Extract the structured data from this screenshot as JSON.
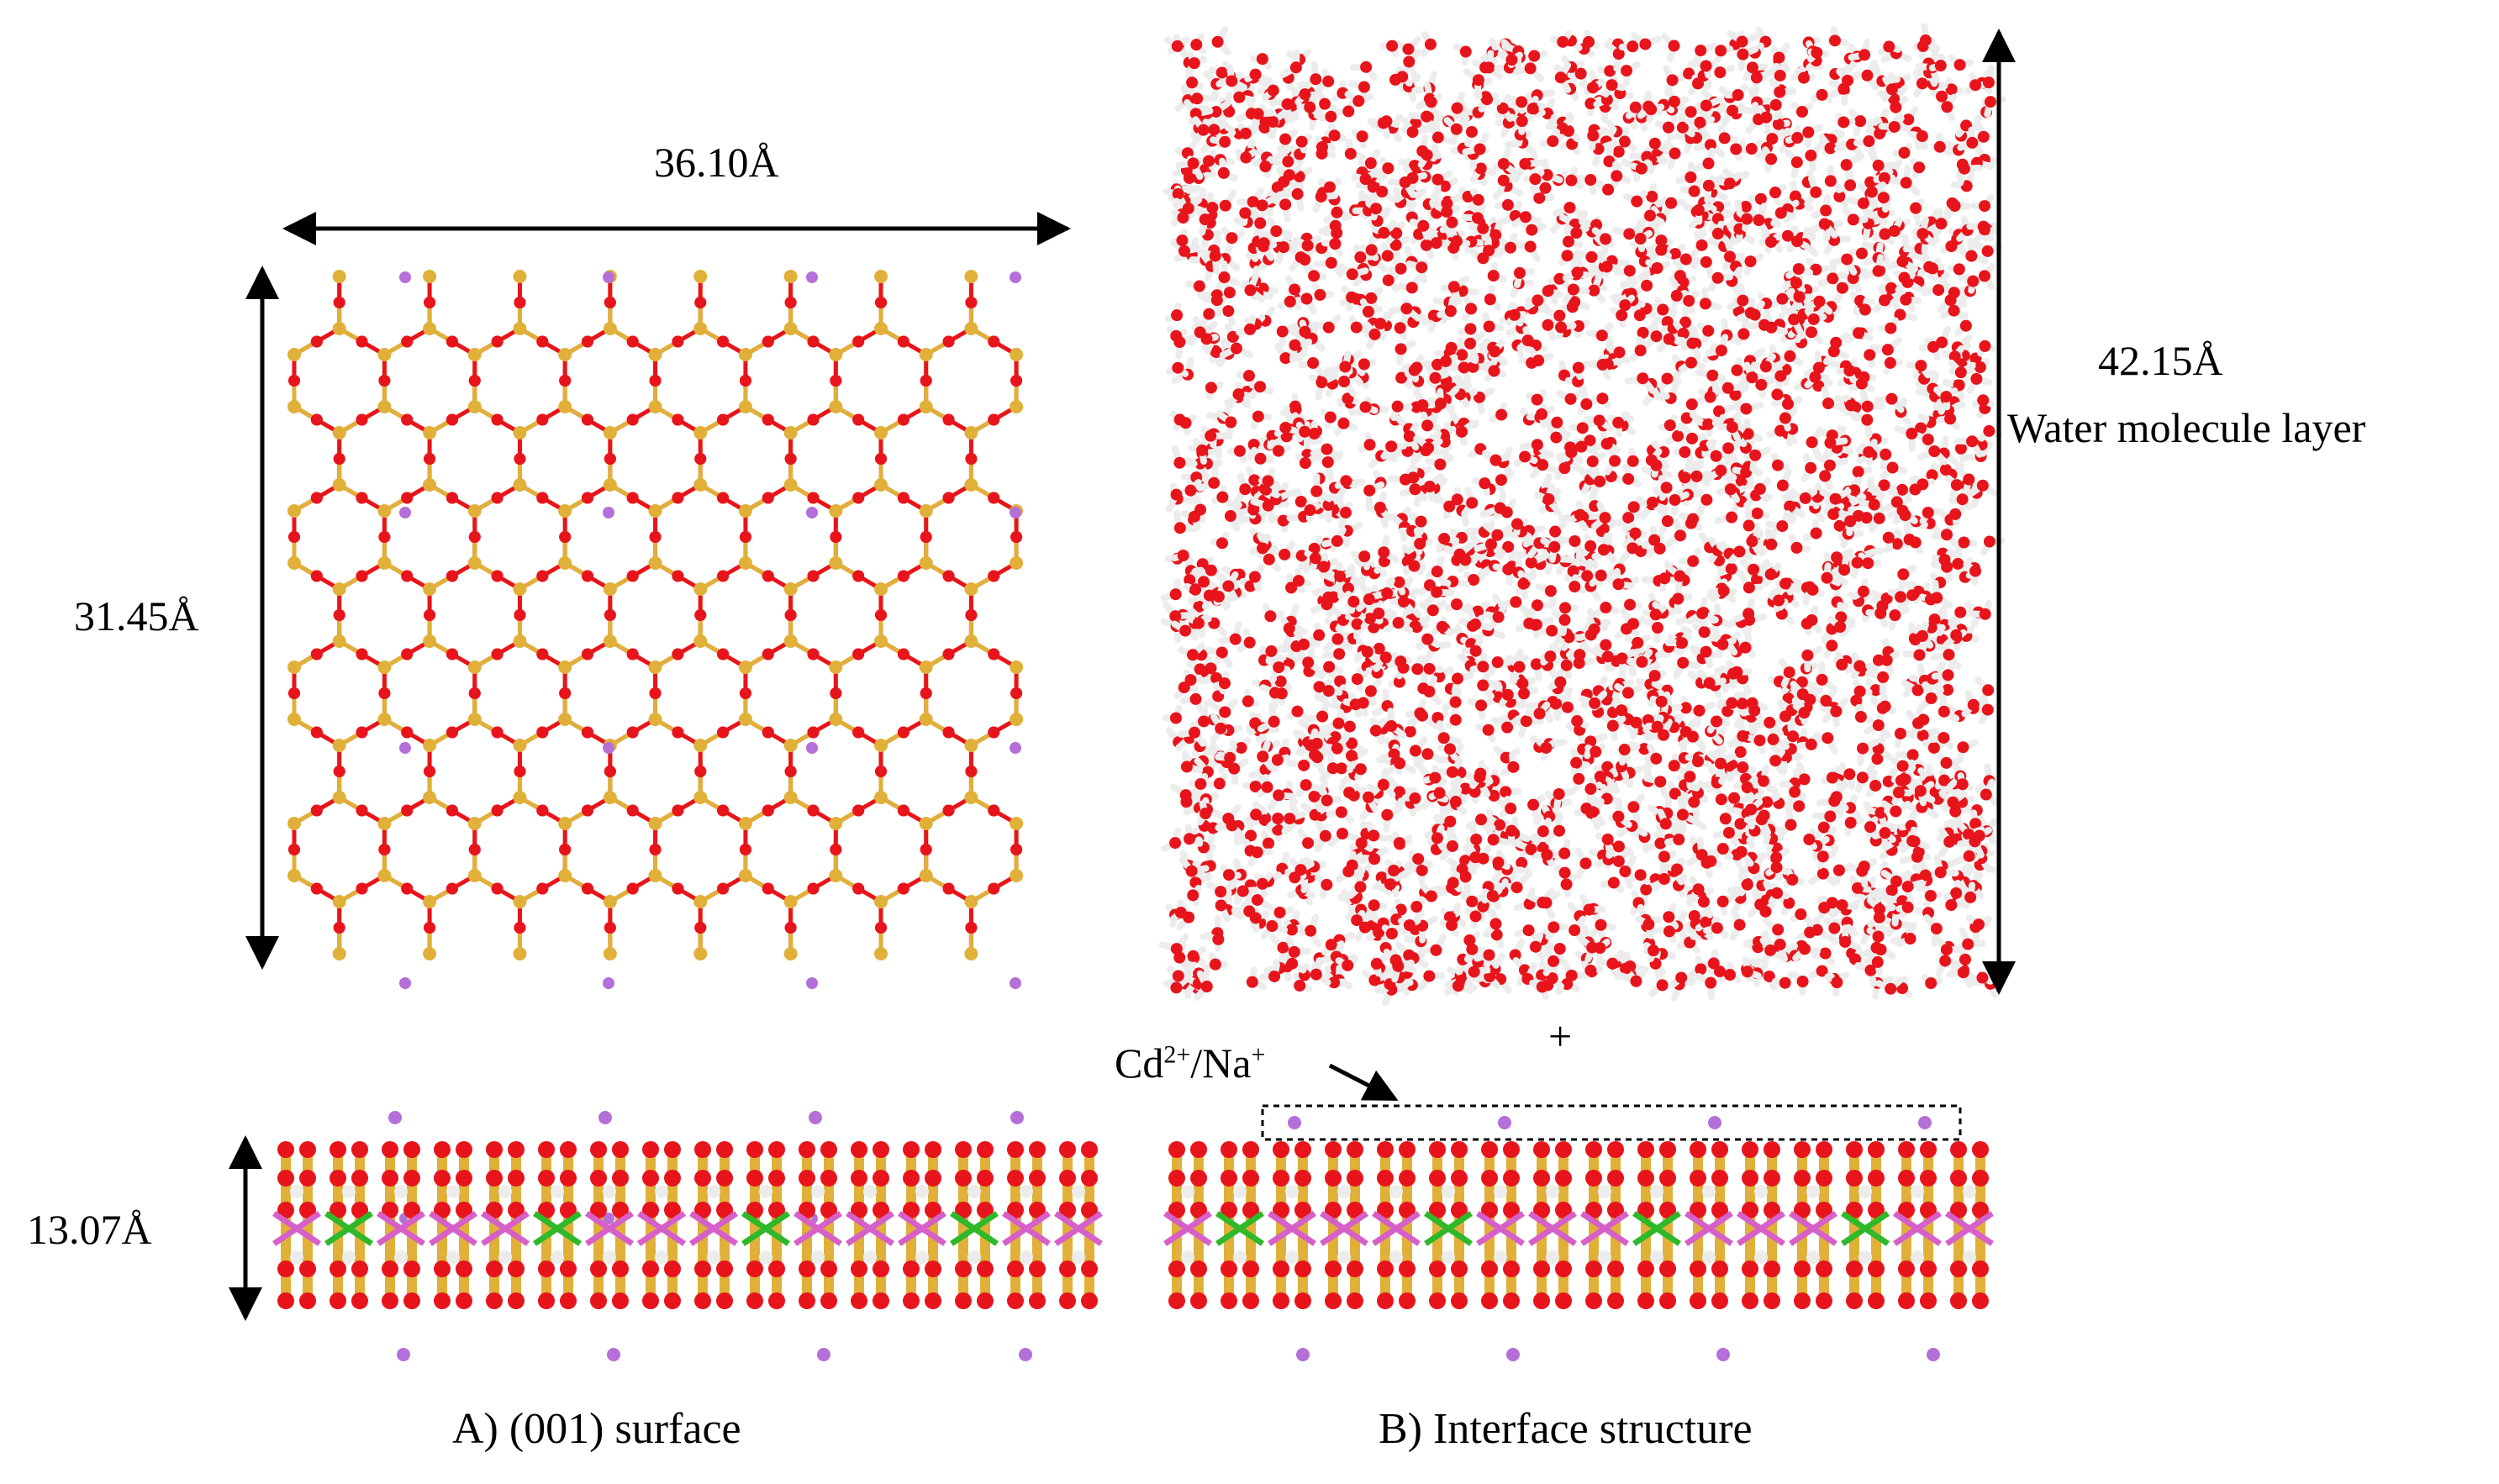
{
  "figure": {
    "colors": {
      "oxygen": "#e8141b",
      "silicon": "#e0b039",
      "hydrogen": "#ececec",
      "cation": "#b56fd8",
      "layer_metal_a": "#2fb829",
      "layer_metal_b": "#d65fc8",
      "line": "#000000"
    },
    "panel_a": {
      "width_label": "36.10Å",
      "height_label": "31.45Å",
      "thickness_label": "13.07Å",
      "caption": "A) (001) surface"
    },
    "panel_b": {
      "water_height_label": "42.15Å",
      "water_layer_label": "Water molecule layer",
      "plus_sign": "+",
      "ion_label_prefix": "Cd",
      "ion_label_sup1": "2+",
      "ion_label_mid": "/Na",
      "ion_label_sup2": "+",
      "caption": "B) Interface structure"
    }
  }
}
